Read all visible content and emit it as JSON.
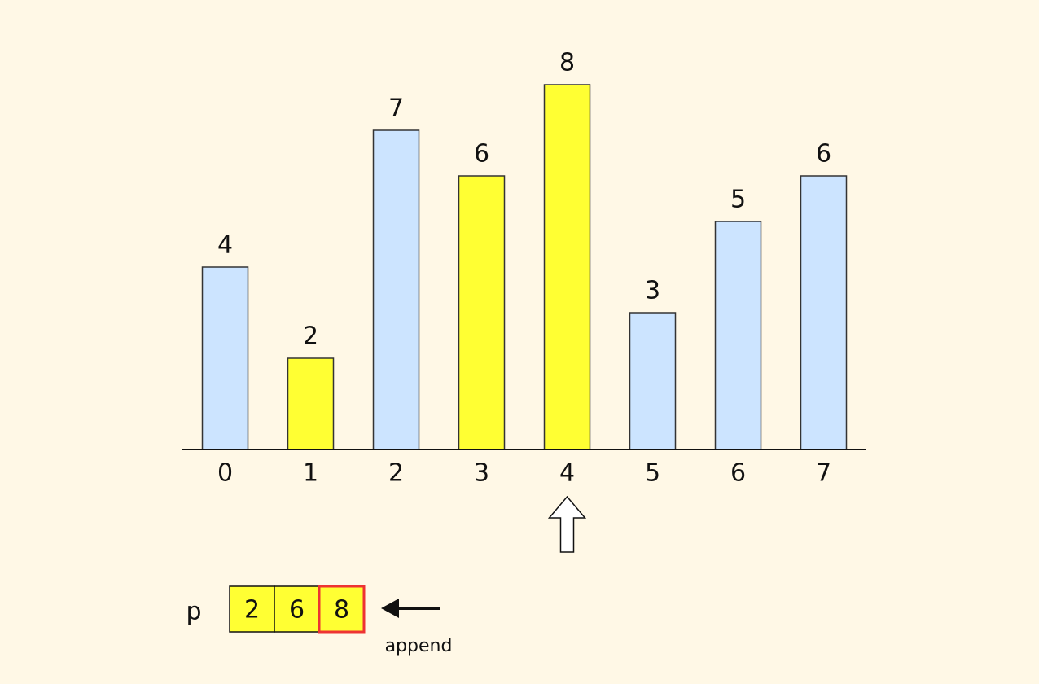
{
  "chart_data": {
    "type": "bar",
    "categories": [
      "0",
      "1",
      "2",
      "3",
      "4",
      "5",
      "6",
      "7"
    ],
    "values": [
      4,
      2,
      7,
      6,
      8,
      3,
      5,
      6
    ],
    "colors": [
      "#cce4ff",
      "#ffff33",
      "#cce4ff",
      "#ffff33",
      "#ffff33",
      "#cce4ff",
      "#cce4ff",
      "#cce4ff"
    ],
    "ylim": [
      0,
      8
    ],
    "pointer_index": 4
  },
  "array": {
    "label": "p",
    "values": [
      "2",
      "6",
      "8"
    ],
    "color": "#ffff33",
    "highlight_index": 2,
    "highlight_color": "#ee3333"
  },
  "annotation": "append"
}
